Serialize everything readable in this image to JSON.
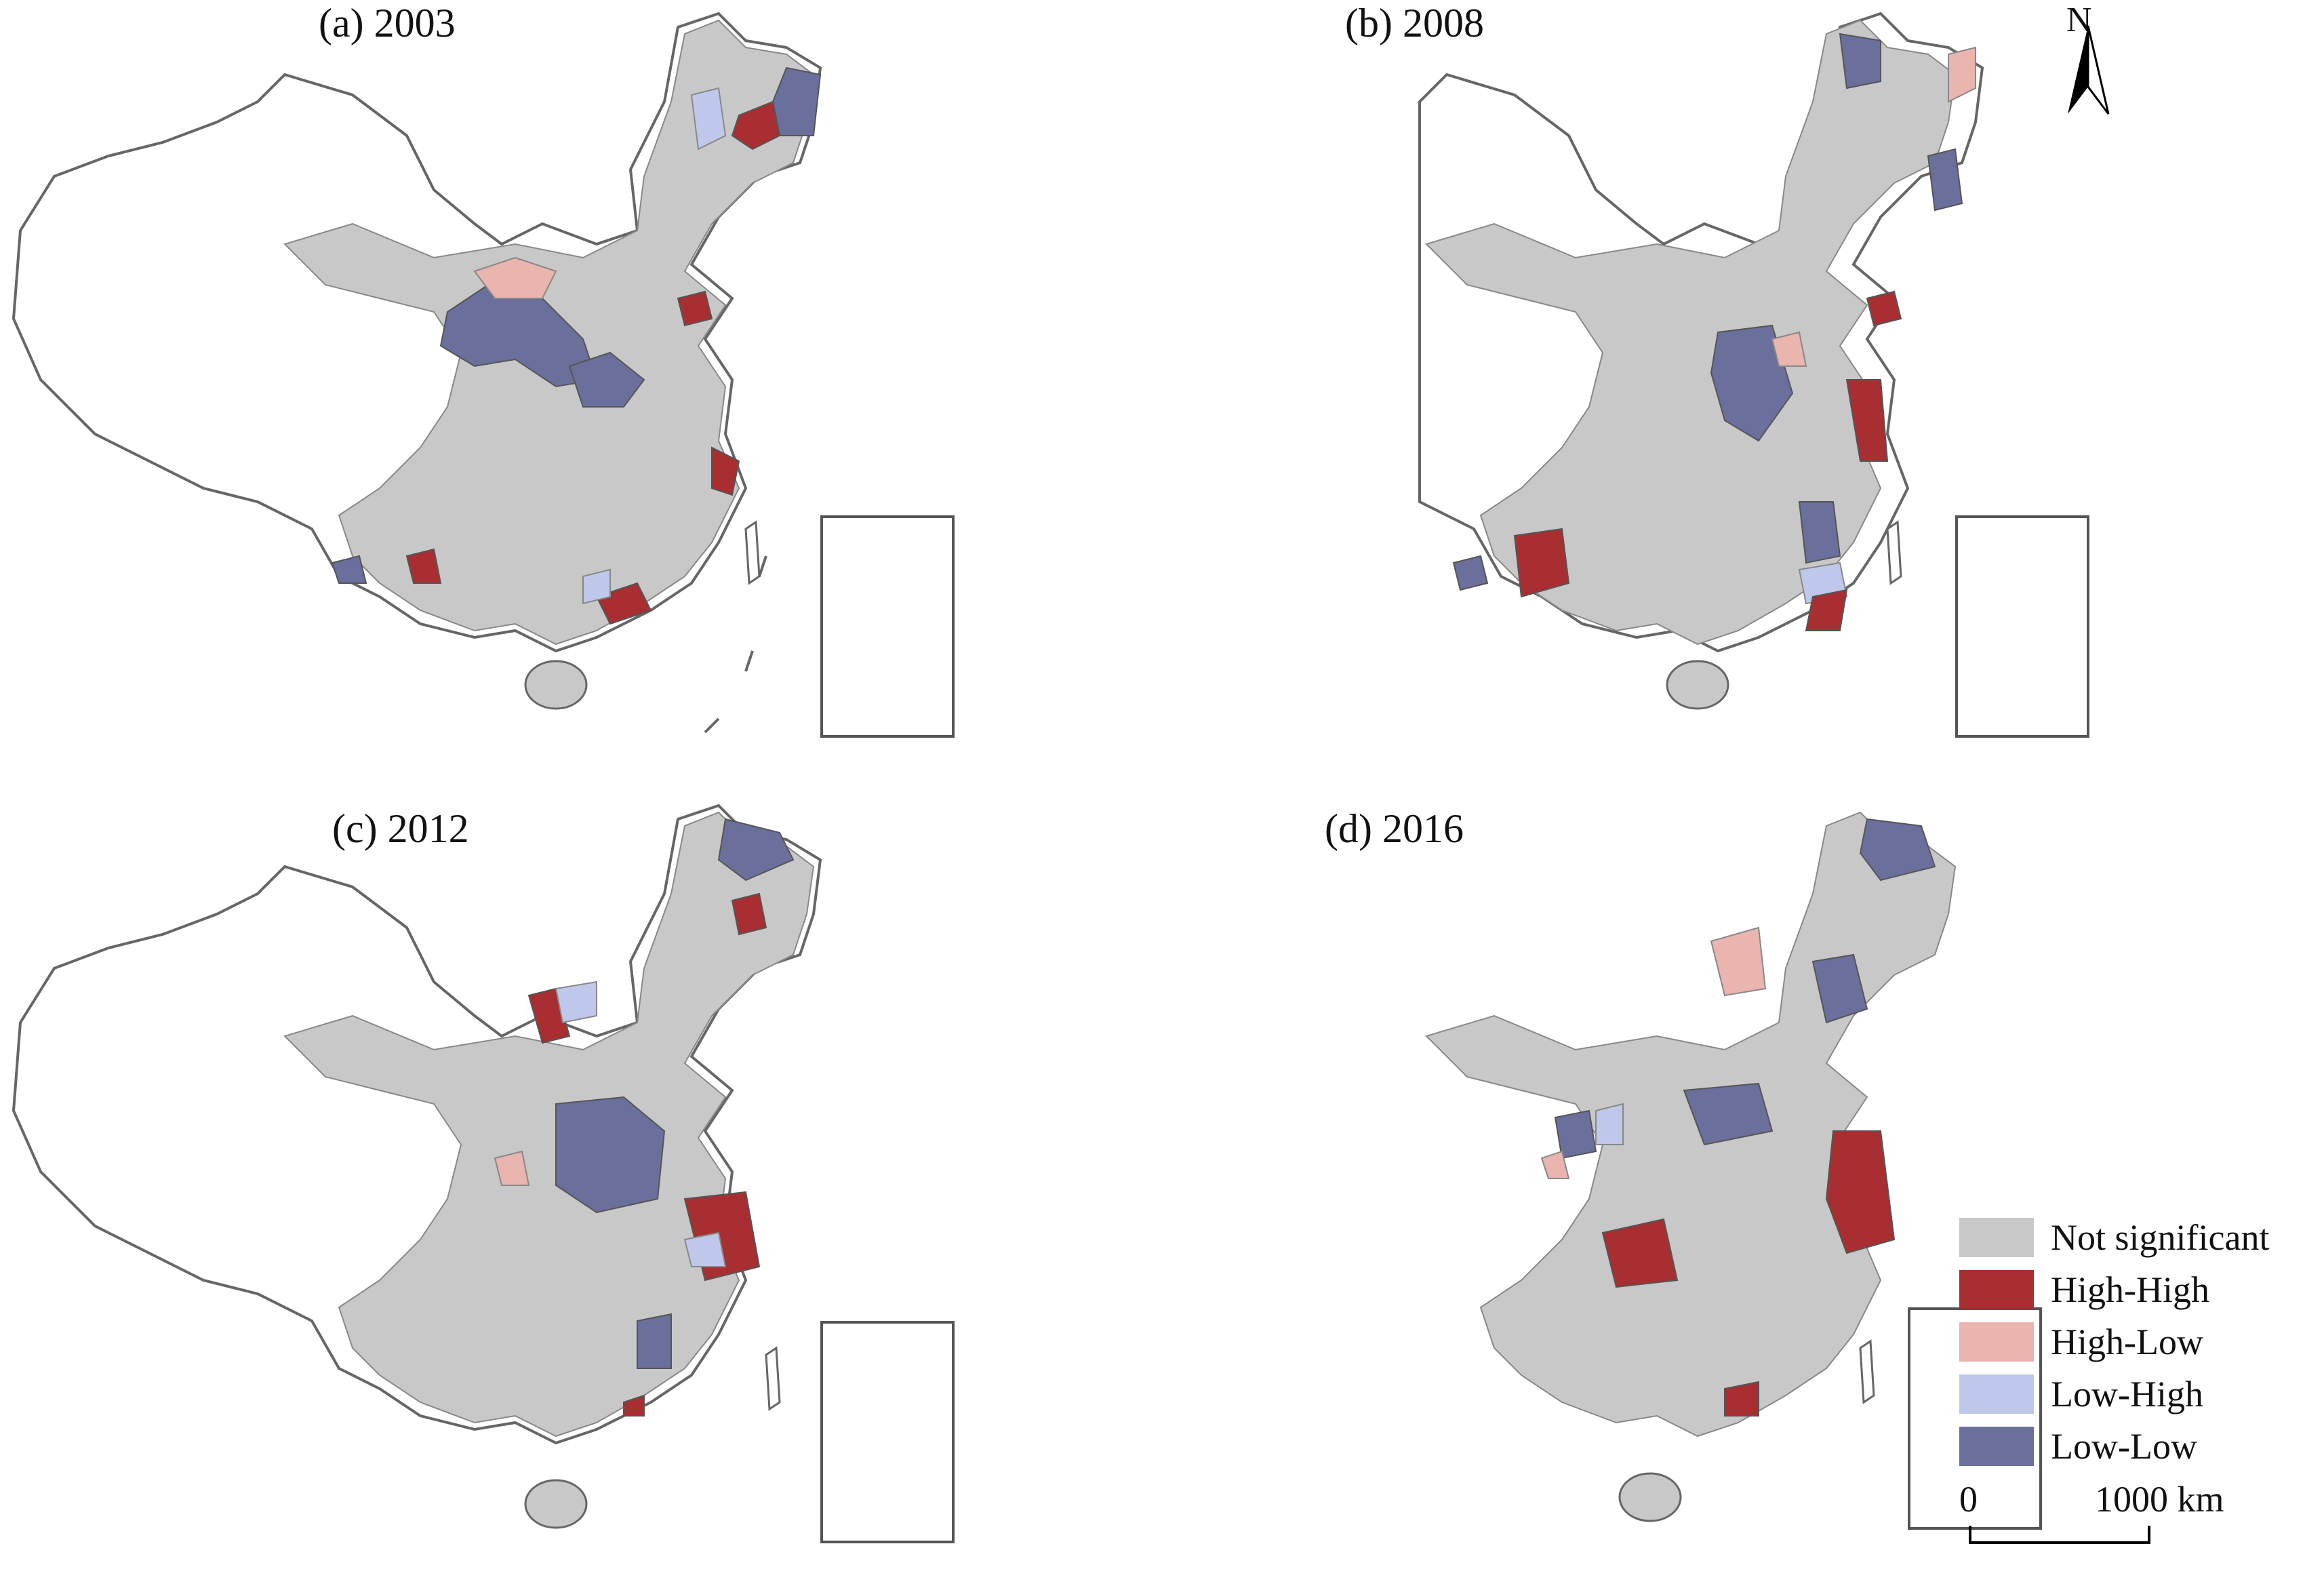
{
  "panels": [
    {
      "id": "a",
      "title": "(a) 2003"
    },
    {
      "id": "b",
      "title": "(b) 2008"
    },
    {
      "id": "c",
      "title": "(c) 2012"
    },
    {
      "id": "d",
      "title": "(d) 2016"
    }
  ],
  "north_arrow": {
    "label": "N"
  },
  "legend": {
    "items": [
      {
        "label": "Not significant",
        "color": "#c8c8c8"
      },
      {
        "label": "High-High",
        "color": "#a82e31"
      },
      {
        "label": "High-Low",
        "color": "#e9b5ae"
      },
      {
        "label": "Low-High",
        "color": "#bfc8ea"
      },
      {
        "label": "Low-Low",
        "color": "#6a6f9c"
      }
    ]
  },
  "scale": {
    "start_label": "0",
    "end_label": "1000 km"
  },
  "colors": {
    "outline": "#666666",
    "not_significant": "#c8c8c8",
    "high_high": "#a82e31",
    "high_low": "#e9b5ae",
    "low_high": "#bfc8ea",
    "low_low": "#6a6f9c"
  }
}
